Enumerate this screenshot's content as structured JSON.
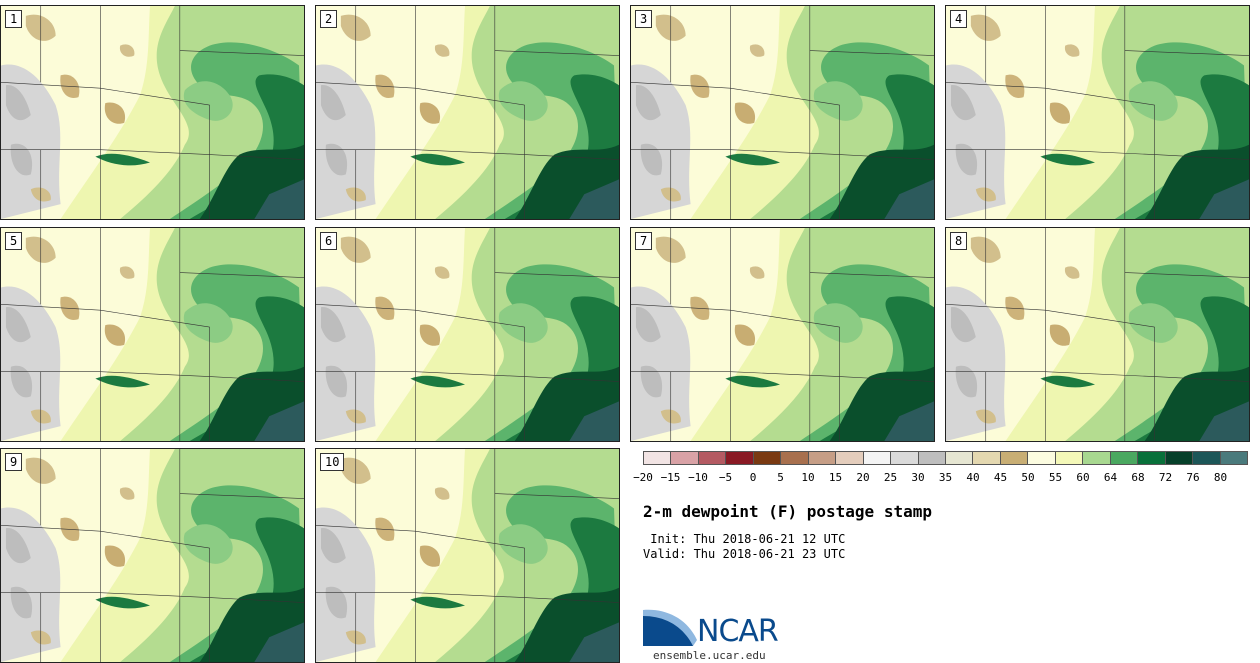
{
  "panels": [
    "1",
    "2",
    "3",
    "4",
    "5",
    "6",
    "7",
    "8",
    "9",
    "10"
  ],
  "colorbar": {
    "ticks": [
      "−20",
      "−15",
      "−10",
      "−5",
      "0",
      "5",
      "10",
      "15",
      "20",
      "25",
      "30",
      "35",
      "40",
      "45",
      "50",
      "55",
      "60",
      "64",
      "68",
      "72",
      "76",
      "80"
    ],
    "colors": [
      "#f2e4e4",
      "#d9a2a6",
      "#b45a62",
      "#8a1a24",
      "#7a3a12",
      "#a8704e",
      "#c69e86",
      "#e4cdbc",
      "#f4f4f4",
      "#dadada",
      "#bebebe",
      "#e6e6d2",
      "#e4d8b0",
      "#c8ae74",
      "#fcfce0",
      "#f4f8b8",
      "#a8d890",
      "#4aa860",
      "#08703a",
      "#06402a",
      "#1c5658",
      "#4a7a7c"
    ]
  },
  "title": "2-m dewpoint (F) postage stamp",
  "init_line": " Init: Thu 2018-06-21 12 UTC",
  "valid_line": "Valid: Thu 2018-06-21 23 UTC",
  "logo": {
    "name": "NCAR",
    "url": "ensemble.ucar.edu"
  }
}
